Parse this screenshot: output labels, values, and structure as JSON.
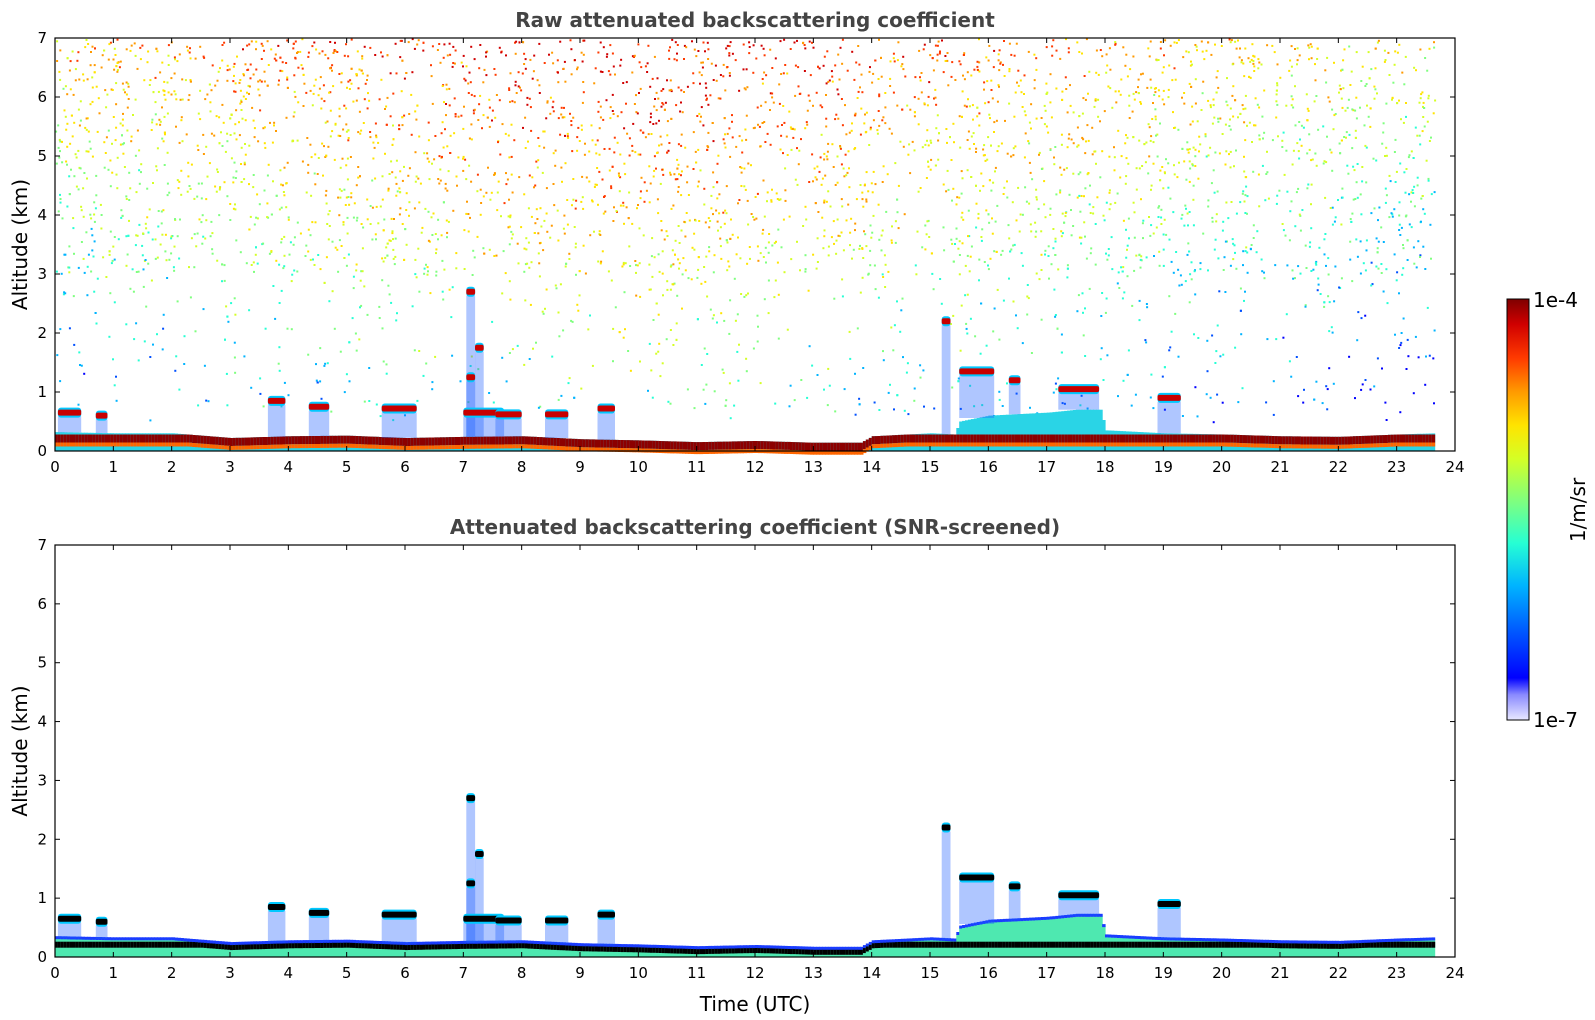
{
  "figure": {
    "colorbar_unit": "1/m/sr",
    "colorbar_max": "1e-4",
    "colorbar_min": "1e-7"
  },
  "colors": {
    "colormap": [
      "#7f0000",
      "#c40000",
      "#ff2a00",
      "#ff7f00",
      "#ffd400",
      "#d4ff26",
      "#7fff7f",
      "#26ffd4",
      "#00d4ff",
      "#0080ff",
      "#0014ff",
      "#0000c4",
      "#8080ff",
      "#e6e6ff"
    ],
    "layer_dark_red": "#8c0000",
    "layer_orange": "#ff6600",
    "screened_core": "#000000"
  },
  "chart_data": [
    {
      "type": "heatmap",
      "title": "Raw attenuated backscattering coefficient",
      "xlabel": "",
      "ylabel": "Altitude (km)",
      "xlim": [
        0,
        24
      ],
      "ylim": [
        0,
        7
      ],
      "xticks": [
        "0",
        "1",
        "2",
        "3",
        "4",
        "5",
        "6",
        "7",
        "8",
        "9",
        "10",
        "11",
        "12",
        "13",
        "14",
        "15",
        "16",
        "17",
        "18",
        "19",
        "20",
        "21",
        "22",
        "23",
        "24"
      ],
      "yticks": [
        "0",
        "1",
        "2",
        "3",
        "4",
        "5",
        "6",
        "7"
      ],
      "data_end_time_utc": 23.65,
      "surface_layer": {
        "time": [
          0,
          1,
          2,
          3,
          4,
          5,
          6,
          7,
          8,
          9,
          10,
          11,
          12,
          13,
          13.8,
          14,
          15,
          15.4,
          15.5,
          16,
          17,
          17.5,
          17.9,
          18,
          19,
          20,
          21,
          22,
          23,
          23.65
        ],
        "top_km": [
          0.32,
          0.3,
          0.3,
          0.22,
          0.25,
          0.26,
          0.22,
          0.24,
          0.25,
          0.2,
          0.18,
          0.15,
          0.17,
          0.14,
          0.14,
          0.25,
          0.3,
          0.28,
          0.5,
          0.6,
          0.65,
          0.7,
          0.7,
          0.35,
          0.3,
          0.28,
          0.25,
          0.24,
          0.28,
          0.3
        ]
      },
      "clouds": [
        {
          "t0": 0.05,
          "t1": 0.45,
          "alt_km": 0.65
        },
        {
          "t0": 0.7,
          "t1": 0.9,
          "alt_km": 0.6
        },
        {
          "t0": 3.65,
          "t1": 3.95,
          "alt_km": 0.85
        },
        {
          "t0": 4.35,
          "t1": 4.7,
          "alt_km": 0.75
        },
        {
          "t0": 5.6,
          "t1": 6.2,
          "alt_km": 0.72
        },
        {
          "t0": 7.05,
          "t1": 7.2,
          "alt_km": 2.7
        },
        {
          "t0": 7.2,
          "t1": 7.35,
          "alt_km": 1.75
        },
        {
          "t0": 7.05,
          "t1": 7.2,
          "alt_km": 1.25
        },
        {
          "t0": 7.0,
          "t1": 7.7,
          "alt_km": 0.65
        },
        {
          "t0": 7.55,
          "t1": 8.0,
          "alt_km": 0.62
        },
        {
          "t0": 8.4,
          "t1": 8.8,
          "alt_km": 0.62
        },
        {
          "t0": 9.3,
          "t1": 9.6,
          "alt_km": 0.72
        },
        {
          "t0": 15.2,
          "t1": 15.35,
          "alt_km": 2.2
        },
        {
          "t0": 15.5,
          "t1": 16.1,
          "alt_km": 1.35
        },
        {
          "t0": 16.35,
          "t1": 16.55,
          "alt_km": 1.2
        },
        {
          "t0": 17.2,
          "t1": 17.9,
          "alt_km": 1.05
        },
        {
          "t0": 18.9,
          "t1": 19.3,
          "alt_km": 0.9
        }
      ]
    },
    {
      "type": "heatmap",
      "title": "Attenuated backscattering coefficient (SNR-screened)",
      "xlabel": "Time (UTC)",
      "ylabel": "Altitude (km)",
      "xlim": [
        0,
        24
      ],
      "ylim": [
        0,
        7
      ],
      "xticks": [
        "0",
        "1",
        "2",
        "3",
        "4",
        "5",
        "6",
        "7",
        "8",
        "9",
        "10",
        "11",
        "12",
        "13",
        "14",
        "15",
        "16",
        "17",
        "18",
        "19",
        "20",
        "21",
        "22",
        "23",
        "24"
      ],
      "yticks": [
        "0",
        "1",
        "2",
        "3",
        "4",
        "5",
        "6",
        "7"
      ]
    }
  ]
}
